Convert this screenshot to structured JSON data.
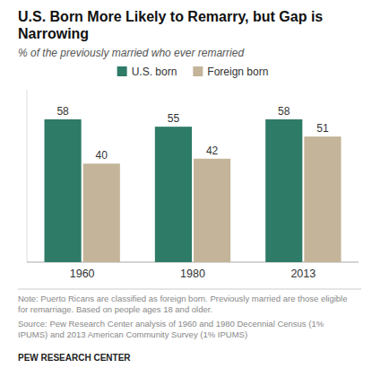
{
  "chart_data": {
    "type": "bar",
    "title": "U.S. Born More Likely to Remarry, but Gap is\nNarrowing",
    "subtitle": "% of the previously married who ever remarried",
    "categories": [
      "1960",
      "1980",
      "2013"
    ],
    "series": [
      {
        "name": "U.S. born",
        "color": "#2E7B68",
        "values": [
          58,
          55,
          58
        ]
      },
      {
        "name": "Foreign born",
        "color": "#C4B49A",
        "values": [
          40,
          42,
          51
        ]
      }
    ],
    "ylim": [
      0,
      70
    ],
    "tick_labels": "x",
    "data_labels": true,
    "grid": false,
    "legend": "top",
    "annotations": [
      "Note: Puerto Ricans are classified as foreign born. Previously married are those eligible\nfor remarriage. Based on people ages 18 and older.",
      "Source: Pew Research Center analysis of 1960 and 1980 Decennial Census (1%\nIPUMS)  and 2013 American Community Survey (1% IPUMS)",
      "PEW RESEARCH CENTER"
    ]
  }
}
